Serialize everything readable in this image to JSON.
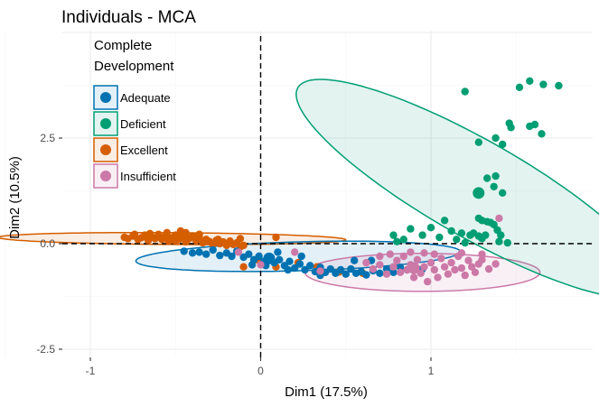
{
  "chart_data": {
    "type": "scatter",
    "title": "Individuals - MCA",
    "xlabel": "Dim1 (17.5%)",
    "ylabel": "Dim2 (10.5%)",
    "xlim": [
      -1.08,
      1.95
    ],
    "ylim": [
      -2.65,
      4.85
    ],
    "x_ticks": [
      -1,
      0,
      1
    ],
    "x_tick_labels": [
      "-1",
      "0",
      "1"
    ],
    "y_ticks": [
      -2.5,
      0,
      2.5
    ],
    "y_tick_labels": [
      "-2.5",
      "0.0",
      "2.5"
    ],
    "grid": true,
    "reference_lines": {
      "x": 0,
      "y": 0,
      "style": "dashed"
    },
    "legend": {
      "title_lines": [
        "Complete",
        "Development"
      ],
      "placement": "top-left",
      "entries": [
        "Adequate",
        "Deficient",
        "Excellent",
        "Insufficient"
      ]
    },
    "series": [
      {
        "name": "Excellent",
        "color": "#D55E00",
        "ellipse": {
          "cx": -0.52,
          "cy": 0.12,
          "rx": 1.02,
          "ry": 0.14,
          "angle_deg": -1.6
        },
        "centroid": [
          -0.5,
          0.12
        ],
        "points": [
          [
            -0.8,
            0.15
          ],
          [
            -0.78,
            0.12
          ],
          [
            -0.75,
            0.18
          ],
          [
            -0.72,
            0.1
          ],
          [
            -0.7,
            0.14
          ],
          [
            -0.68,
            0.2
          ],
          [
            -0.66,
            0.08
          ],
          [
            -0.64,
            0.16
          ],
          [
            -0.62,
            0.12
          ],
          [
            -0.6,
            0.22
          ],
          [
            -0.58,
            0.1
          ],
          [
            -0.56,
            0.17
          ],
          [
            -0.54,
            0.06
          ],
          [
            -0.52,
            0.14
          ],
          [
            -0.5,
            0.2
          ],
          [
            -0.48,
            0.1
          ],
          [
            -0.46,
            0.16
          ],
          [
            -0.44,
            0.04
          ],
          [
            -0.42,
            0.12
          ],
          [
            -0.4,
            0.18
          ],
          [
            -0.38,
            0.08
          ],
          [
            -0.36,
            0.14
          ],
          [
            -0.34,
            0.02
          ],
          [
            -0.32,
            0.1
          ],
          [
            -0.3,
            0.05
          ],
          [
            -0.28,
            -0.02
          ],
          [
            -0.26,
            0.08
          ],
          [
            -0.24,
            0.0
          ],
          [
            -0.22,
            0.04
          ],
          [
            -0.2,
            -0.04
          ],
          [
            -0.18,
            0.06
          ],
          [
            -0.16,
            -0.02
          ],
          [
            -0.14,
            0.02
          ],
          [
            -0.12,
            -0.08
          ],
          [
            -0.1,
            -0.04
          ],
          [
            -0.47,
            0.3
          ],
          [
            -0.44,
            0.26
          ],
          [
            -0.36,
            0.22
          ],
          [
            -0.12,
            0.12
          ],
          [
            -0.25,
            0.1
          ],
          [
            -0.55,
            0.26
          ],
          [
            -0.65,
            0.24
          ],
          [
            -0.74,
            0.22
          ],
          [
            0.09,
            0.15
          ],
          [
            -0.1,
            -0.55
          ],
          [
            0.09,
            -0.55
          ],
          [
            0.22,
            -0.45
          ],
          [
            0.33,
            -0.55
          ],
          [
            0.46,
            -0.67
          ],
          [
            0.6,
            -0.7
          ],
          [
            -0.02,
            -0.38
          ]
        ]
      },
      {
        "name": "Adequate",
        "color": "#0072B2",
        "ellipse": {
          "cx": 0.22,
          "cy": -0.3,
          "rx": 0.96,
          "ry": 0.34,
          "angle_deg": 7.5
        },
        "centroid": [
          0.05,
          -0.35
        ],
        "points": [
          [
            -0.45,
            -0.18
          ],
          [
            -0.4,
            -0.22
          ],
          [
            -0.36,
            -0.2
          ],
          [
            -0.32,
            -0.25
          ],
          [
            -0.28,
            -0.15
          ],
          [
            -0.24,
            -0.28
          ],
          [
            -0.2,
            -0.22
          ],
          [
            -0.17,
            -0.3
          ],
          [
            -0.14,
            -0.18
          ],
          [
            -0.1,
            -0.32
          ],
          [
            -0.07,
            -0.25
          ],
          [
            -0.04,
            -0.38
          ],
          [
            -0.01,
            -0.3
          ],
          [
            0.02,
            -0.42
          ],
          [
            0.05,
            -0.35
          ],
          [
            0.08,
            -0.45
          ],
          [
            0.11,
            -0.38
          ],
          [
            0.14,
            -0.52
          ],
          [
            0.17,
            -0.42
          ],
          [
            0.2,
            -0.58
          ],
          [
            0.23,
            -0.48
          ],
          [
            0.26,
            -0.62
          ],
          [
            0.29,
            -0.52
          ],
          [
            0.32,
            -0.66
          ],
          [
            0.35,
            -0.56
          ],
          [
            0.38,
            -0.68
          ],
          [
            0.41,
            -0.6
          ],
          [
            0.44,
            -0.7
          ],
          [
            0.47,
            -0.62
          ],
          [
            0.5,
            -0.72
          ],
          [
            0.53,
            -0.6
          ],
          [
            0.56,
            -0.7
          ],
          [
            0.59,
            -0.66
          ],
          [
            0.62,
            -0.74
          ],
          [
            0.66,
            -0.64
          ],
          [
            0.7,
            -0.7
          ],
          [
            0.74,
            -0.6
          ],
          [
            0.78,
            -0.68
          ],
          [
            0.82,
            -0.56
          ],
          [
            0.86,
            -0.62
          ],
          [
            0.1,
            -0.2
          ],
          [
            0.03,
            -0.52
          ],
          [
            0.24,
            -0.3
          ],
          [
            0.35,
            -0.75
          ],
          [
            0.55,
            -0.4
          ],
          [
            0.65,
            -0.4
          ],
          [
            0.9,
            -0.55
          ],
          [
            0.95,
            -0.6
          ],
          [
            -0.05,
            -0.5
          ],
          [
            0.16,
            -0.62
          ]
        ]
      },
      {
        "name": "Insufficient",
        "color": "#CC79A7",
        "ellipse": {
          "cx": 0.95,
          "cy": -0.68,
          "rx": 0.69,
          "ry": 0.45,
          "angle_deg": 0
        },
        "centroid": [
          0.9,
          -0.58
        ],
        "points": [
          [
            0.62,
            -0.45
          ],
          [
            0.66,
            -0.6
          ],
          [
            0.7,
            -0.5
          ],
          [
            0.74,
            -0.72
          ],
          [
            0.78,
            -0.55
          ],
          [
            0.8,
            -0.4
          ],
          [
            0.82,
            -0.68
          ],
          [
            0.84,
            -0.3
          ],
          [
            0.86,
            -0.62
          ],
          [
            0.88,
            -0.5
          ],
          [
            0.9,
            -0.8
          ],
          [
            0.92,
            -0.38
          ],
          [
            0.94,
            -0.7
          ],
          [
            0.96,
            -0.55
          ],
          [
            0.98,
            -0.9
          ],
          [
            1.0,
            -0.45
          ],
          [
            1.02,
            -0.62
          ],
          [
            1.04,
            -0.8
          ],
          [
            1.06,
            -0.35
          ],
          [
            1.08,
            -0.55
          ],
          [
            1.1,
            -0.72
          ],
          [
            1.12,
            -0.45
          ],
          [
            1.14,
            -0.62
          ],
          [
            1.16,
            -0.3
          ],
          [
            1.18,
            -0.58
          ],
          [
            1.2,
            -0.75
          ],
          [
            1.22,
            -0.4
          ],
          [
            1.24,
            -0.55
          ],
          [
            1.26,
            -0.68
          ],
          [
            1.28,
            -0.48
          ],
          [
            1.3,
            -0.38
          ],
          [
            1.34,
            -0.6
          ],
          [
            1.38,
            -0.48
          ],
          [
            1.02,
            -0.25
          ],
          [
            0.96,
            -0.22
          ],
          [
            0.88,
            -0.2
          ],
          [
            0.76,
            -0.25
          ],
          [
            0.7,
            -0.3
          ],
          [
            1.4,
            0.6
          ],
          [
            0.2,
            -0.2
          ],
          [
            0.35,
            -0.65
          ],
          [
            -0.13,
            -0.2
          ],
          [
            0.0,
            -0.5
          ],
          [
            1.18,
            -0.22
          ],
          [
            1.3,
            -0.25
          ]
        ]
      },
      {
        "name": "Deficient",
        "color": "#009E73",
        "ellipse": {
          "cx": 1.26,
          "cy": 1.3,
          "rx": 2.75,
          "ry": 0.5,
          "angle_deg": -70
        },
        "centroid": [
          1.28,
          1.2
        ],
        "points": [
          [
            1.58,
            3.85
          ],
          [
            1.52,
            3.7
          ],
          [
            1.66,
            3.77
          ],
          [
            1.75,
            3.74
          ],
          [
            1.2,
            3.6
          ],
          [
            1.46,
            2.85
          ],
          [
            1.47,
            2.75
          ],
          [
            1.58,
            2.78
          ],
          [
            1.61,
            2.82
          ],
          [
            1.65,
            2.6
          ],
          [
            1.28,
            2.4
          ],
          [
            1.38,
            2.5
          ],
          [
            1.42,
            2.35
          ],
          [
            1.33,
            1.55
          ],
          [
            1.38,
            1.6
          ],
          [
            1.42,
            1.2
          ],
          [
            1.37,
            1.35
          ],
          [
            1.28,
            0.6
          ],
          [
            1.3,
            0.55
          ],
          [
            1.33,
            0.52
          ],
          [
            1.35,
            0.5
          ],
          [
            1.37,
            0.45
          ],
          [
            1.39,
            0.32
          ],
          [
            1.41,
            0.2
          ],
          [
            1.08,
            0.55
          ],
          [
            1.12,
            0.3
          ],
          [
            1.18,
            0.25
          ],
          [
            1.23,
            0.2
          ],
          [
            1.28,
            0.18
          ],
          [
            1.25,
            0.25
          ],
          [
            1.3,
            0.12
          ],
          [
            1.32,
            0.2
          ],
          [
            1.15,
            0.1
          ],
          [
            1.05,
            0.15
          ],
          [
            1.0,
            0.38
          ],
          [
            0.95,
            0.2
          ],
          [
            0.88,
            0.35
          ],
          [
            0.84,
            0.1
          ],
          [
            0.8,
            0.05
          ],
          [
            0.78,
            0.2
          ],
          [
            1.45,
            0.02
          ],
          [
            1.4,
            0.05
          ],
          [
            1.2,
            0.02
          ]
        ]
      }
    ]
  }
}
